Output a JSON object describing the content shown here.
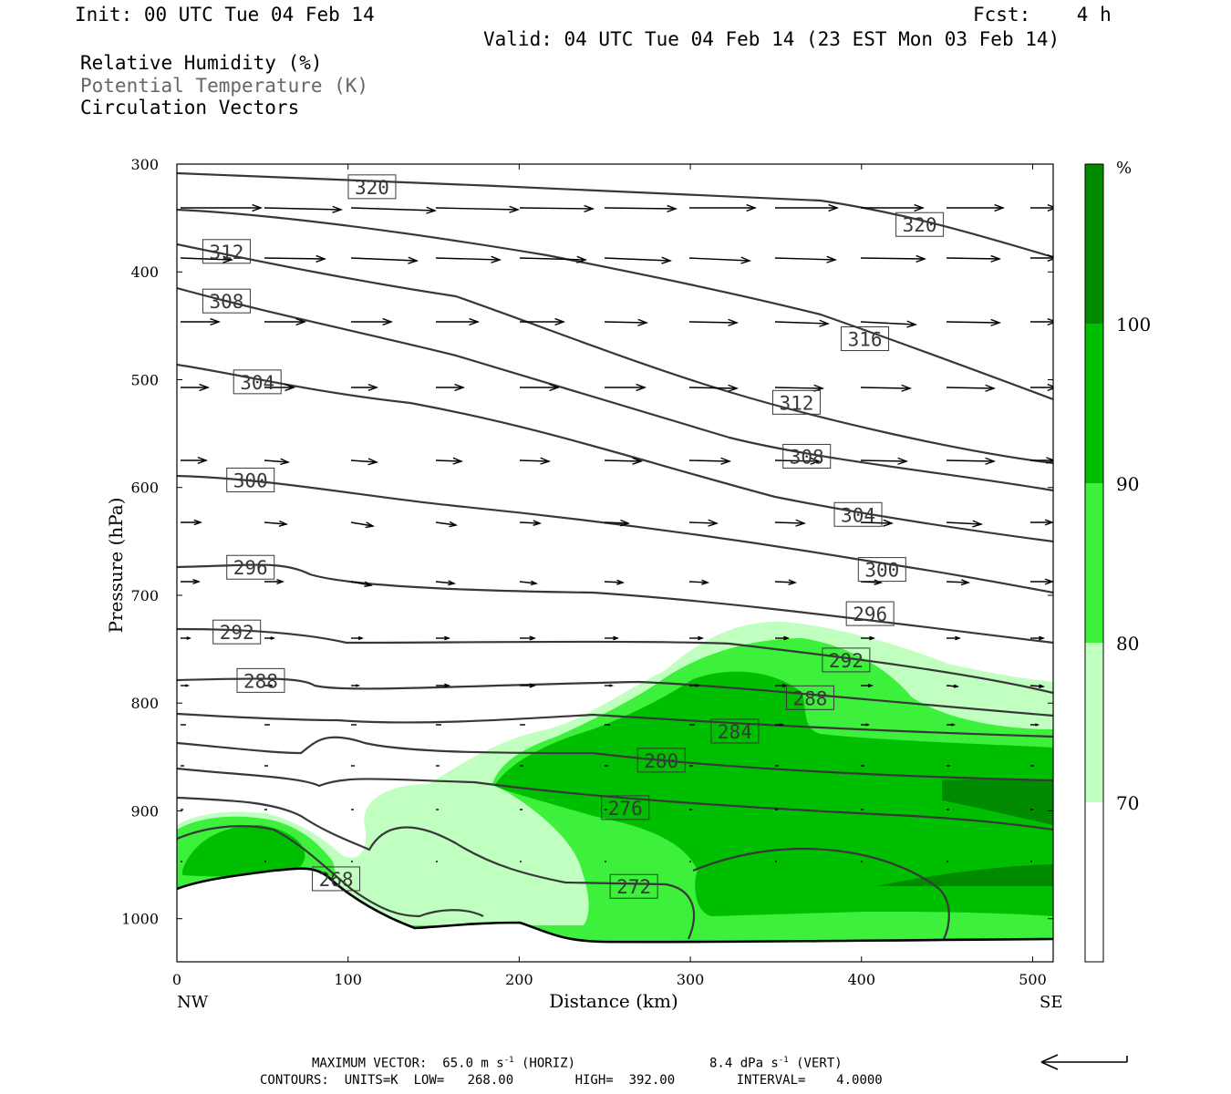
{
  "header": {
    "init": "Init: 00 UTC Tue 04 Feb 14",
    "fcst": "Fcst:    4 h",
    "valid": "Valid: 04 UTC Tue 04 Feb 14 (23 EST Mon 03 Feb 14)"
  },
  "legend_text": {
    "rh": "Relative Humidity (%)",
    "theta": "Potential Temperature (K)",
    "vectors": "Circulation Vectors"
  },
  "colors": {
    "rh_70_80": "#c0ffc0",
    "rh_80_90": "#3cf03c",
    "rh_90_100": "#00bf00",
    "rh_100": "#008a00",
    "contour": "#383838",
    "vector": "#000000"
  },
  "footer": {
    "max_vector": "MAXIMUM VECTOR:  65.0 m s",
    "max_vector_exp": "-1",
    "horiz": " (HORIZ)",
    "vert_val": "8.4 dPa s",
    "vert_exp": "-1",
    "vert": " (VERT)",
    "contours": "CONTOURS:  UNITS=K  LOW=   268.00        HIGH=  392.00        INTERVAL=    4.0000"
  },
  "chart_data": {
    "type": "contour",
    "xlabel": "Distance (km)",
    "ylabel": "Pressure (hPa)",
    "x_ticks": [
      0,
      100,
      200,
      300,
      400,
      500
    ],
    "y_ticks": [
      300,
      400,
      500,
      600,
      700,
      800,
      900,
      1000
    ],
    "xlim": [
      0,
      512
    ],
    "ylim": [
      300,
      1040
    ],
    "y_reversed": true,
    "x_end_labels": {
      "left": "NW",
      "right": "SE"
    },
    "colorbar": {
      "unit": "%",
      "levels": [
        70,
        80,
        90,
        100
      ]
    },
    "contour_labels": [
      {
        "value": "320",
        "x": 114,
        "p": 321
      },
      {
        "value": "320",
        "x": 434,
        "p": 356
      },
      {
        "value": "316",
        "x": 402,
        "p": 462
      },
      {
        "value": "312",
        "x": 29,
        "p": 381
      },
      {
        "value": "312",
        "x": 362,
        "p": 521
      },
      {
        "value": "308",
        "x": 29,
        "p": 427
      },
      {
        "value": "308",
        "x": 368,
        "p": 571
      },
      {
        "value": "304",
        "x": 47,
        "p": 502
      },
      {
        "value": "304",
        "x": 398,
        "p": 625
      },
      {
        "value": "300",
        "x": 43,
        "p": 593
      },
      {
        "value": "300",
        "x": 412,
        "p": 676
      },
      {
        "value": "296",
        "x": 43,
        "p": 674
      },
      {
        "value": "296",
        "x": 405,
        "p": 717
      },
      {
        "value": "292",
        "x": 35,
        "p": 734
      },
      {
        "value": "292",
        "x": 391,
        "p": 760
      },
      {
        "value": "288",
        "x": 49,
        "p": 779
      },
      {
        "value": "288",
        "x": 370,
        "p": 795
      },
      {
        "value": "284",
        "x": 326,
        "p": 826
      },
      {
        "value": "280",
        "x": 283,
        "p": 853
      },
      {
        "value": "276",
        "x": 262,
        "p": 897
      },
      {
        "value": "272",
        "x": 267,
        "p": 970
      },
      {
        "value": "268",
        "x": 93,
        "p": 963
      }
    ]
  }
}
